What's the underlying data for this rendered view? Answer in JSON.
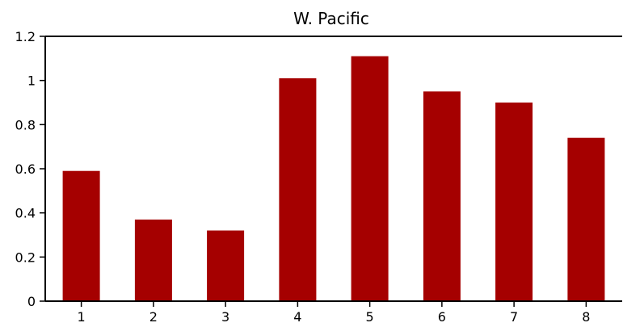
{
  "chart_data": {
    "type": "bar",
    "title": "W. Pacific",
    "categories": [
      "1",
      "2",
      "3",
      "4",
      "5",
      "6",
      "7",
      "8"
    ],
    "values": [
      0.59,
      0.37,
      0.32,
      1.01,
      1.11,
      0.95,
      0.9,
      0.74
    ],
    "xlabel": "",
    "ylabel": "",
    "ylim": [
      0,
      1.2
    ],
    "yticks": [
      0,
      0.2,
      0.4,
      0.6,
      0.8,
      1,
      1.2
    ],
    "ytick_labels": [
      "0",
      "0.2",
      "0.4",
      "0.6",
      "0.8",
      "1",
      "1.2"
    ],
    "grid": false,
    "legend": "none",
    "bar_color": "#a50000"
  }
}
